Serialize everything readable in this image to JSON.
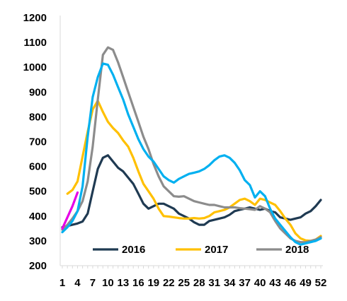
{
  "chart_data": {
    "type": "line",
    "title": "",
    "xlabel": "",
    "ylabel": "",
    "ylim": [
      200,
      1200
    ],
    "y_ticks": [
      "200",
      "300",
      "400",
      "500",
      "600",
      "700",
      "800",
      "900",
      "1000",
      "1100",
      "1200"
    ],
    "x_range": [
      1,
      52
    ],
    "x_ticks": [
      "1",
      "4",
      "7",
      "10",
      "13",
      "16",
      "19",
      "22",
      "25",
      "28",
      "31",
      "34",
      "37",
      "40",
      "43",
      "46",
      "49",
      "52"
    ],
    "grid": false,
    "legend_position": "bottom-inside",
    "legend": [
      "2016",
      "2017",
      "2018"
    ],
    "series": [
      {
        "name": "2016",
        "color": "#1f3a52",
        "x": [
          1,
          2,
          3,
          4,
          5,
          6,
          7,
          8,
          9,
          10,
          11,
          12,
          13,
          14,
          15,
          16,
          17,
          18,
          19,
          20,
          21,
          22,
          23,
          24,
          25,
          26,
          27,
          28,
          29,
          30,
          31,
          32,
          33,
          34,
          35,
          36,
          37,
          38,
          39,
          40,
          41,
          42,
          43,
          44,
          45,
          46,
          47,
          48,
          49,
          50,
          51,
          52
        ],
        "values": [
          355,
          360,
          365,
          370,
          378,
          410,
          500,
          590,
          635,
          645,
          620,
          595,
          580,
          555,
          530,
          490,
          450,
          430,
          440,
          450,
          450,
          440,
          430,
          410,
          400,
          390,
          375,
          365,
          365,
          380,
          385,
          390,
          395,
          405,
          420,
          425,
          430,
          435,
          430,
          425,
          430,
          420,
          415,
          395,
          390,
          385,
          390,
          395,
          410,
          420,
          440,
          465
        ]
      },
      {
        "name": "2017",
        "color": "#ffc000",
        "x": [
          1,
          2,
          3,
          4,
          5,
          6,
          7,
          8,
          9,
          10,
          11,
          12,
          13,
          14,
          15,
          16,
          17,
          18,
          19,
          20,
          21,
          22,
          23,
          24,
          25,
          26,
          27,
          28,
          29,
          30,
          31,
          32,
          33,
          34,
          35,
          36,
          37,
          38,
          39,
          40,
          41,
          42,
          43,
          44,
          45,
          46,
          47,
          48,
          49,
          50,
          51,
          52
        ],
        "values": [
          null,
          490,
          505,
          540,
          640,
          740,
          830,
          865,
          820,
          780,
          755,
          735,
          705,
          680,
          635,
          580,
          530,
          500,
          470,
          430,
          400,
          398,
          395,
          392,
          390,
          390,
          392,
          390,
          392,
          400,
          415,
          420,
          425,
          435,
          450,
          465,
          470,
          460,
          445,
          470,
          465,
          455,
          445,
          420,
          390,
          365,
          330,
          310,
          302,
          300,
          305,
          320
        ]
      },
      {
        "name": "2018",
        "color": "#8c8c8c",
        "x": [
          1,
          2,
          3,
          4,
          5,
          6,
          7,
          8,
          9,
          10,
          11,
          12,
          13,
          14,
          15,
          16,
          17,
          18,
          19,
          20,
          21,
          22,
          23,
          24,
          25,
          26,
          27,
          28,
          29,
          30,
          31,
          32,
          33,
          34,
          35,
          36,
          37,
          38,
          39,
          40,
          41,
          42,
          43,
          44,
          45,
          46,
          47,
          48,
          49,
          50,
          51,
          52
        ],
        "values": [
          345,
          365,
          390,
          420,
          460,
          540,
          680,
          870,
          1050,
          1080,
          1070,
          1020,
          960,
          900,
          840,
          780,
          720,
          670,
          610,
          560,
          520,
          500,
          480,
          478,
          480,
          470,
          460,
          455,
          450,
          445,
          445,
          440,
          435,
          435,
          435,
          432,
          430,
          428,
          425,
          440,
          430,
          415,
          380,
          350,
          330,
          310,
          300,
          295,
          295,
          300,
          305,
          315
        ]
      },
      {
        "name": "",
        "color": "#00b0f0",
        "x": [
          1,
          2,
          3,
          4,
          5,
          6,
          7,
          8,
          9,
          10,
          11,
          12,
          13,
          14,
          15,
          16,
          17,
          18,
          19,
          20,
          21,
          22,
          23,
          24,
          25,
          26,
          27,
          28,
          29,
          30,
          31,
          32,
          33,
          34,
          35,
          36,
          37,
          38,
          39,
          40,
          41,
          42,
          43,
          44,
          45,
          46,
          47,
          48,
          49,
          50,
          51,
          52
        ],
        "values": [
          335,
          355,
          380,
          420,
          520,
          720,
          880,
          960,
          1015,
          1010,
          970,
          920,
          870,
          810,
          760,
          710,
          670,
          640,
          620,
          590,
          560,
          545,
          535,
          550,
          560,
          570,
          575,
          580,
          590,
          605,
          625,
          640,
          645,
          635,
          615,
          585,
          545,
          525,
          475,
          500,
          480,
          430,
          390,
          365,
          340,
          315,
          295,
          285,
          290,
          295,
          300,
          310
        ]
      },
      {
        "name": "",
        "color": "#e600e6",
        "x": [
          1,
          2,
          3,
          4
        ],
        "values": [
          350,
          395,
          440,
          495
        ]
      }
    ]
  }
}
